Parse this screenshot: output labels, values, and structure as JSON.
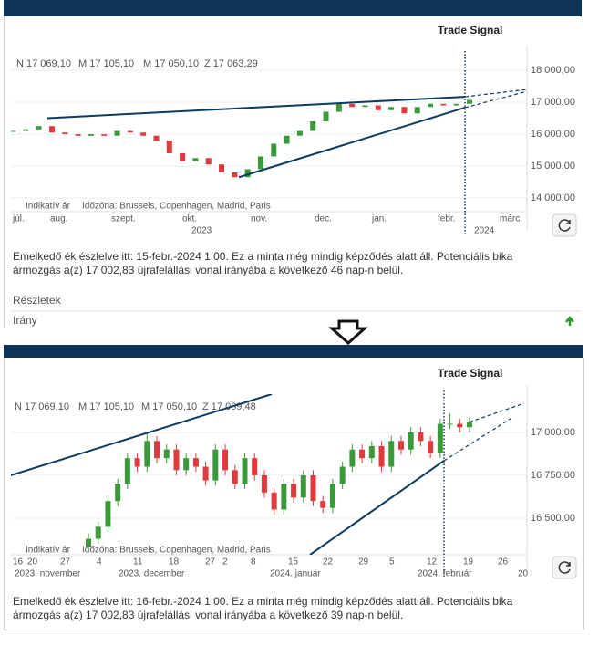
{
  "panels": [
    {
      "title": "Trade Signal",
      "ohlc": [
        "N 17 069,10",
        "M 17 105,10",
        "M 17 050,10",
        "Z 17 063,29"
      ],
      "chart": {
        "type": "candlestick",
        "ylim": [
          13571,
          18486
        ],
        "yticks": [
          {
            "value": 18000,
            "label": "18 000,00"
          },
          {
            "value": 17000,
            "label": "17 000,00"
          },
          {
            "value": 16000,
            "label": "16 000,00"
          },
          {
            "value": 15000,
            "label": "15 000,00"
          },
          {
            "value": 14000,
            "label": "14 000,00"
          }
        ],
        "grid": true,
        "up_color": "#3a9a3a",
        "down_color": "#e0393e",
        "line_color": "#0d3b5e",
        "candles": {
          "open": [
            16080,
            16100,
            16150,
            16250,
            16050,
            16000,
            15950,
            16000,
            15950,
            16100,
            16050,
            15950,
            15800,
            15400,
            15150,
            15250,
            15050,
            14800,
            14650,
            14900,
            15300,
            15700,
            15950,
            16100,
            16400,
            16700,
            16950,
            16850,
            16900,
            16750,
            16850,
            16650,
            16850,
            16950,
            16900,
            16950
          ],
          "close": [
            16100,
            16150,
            16250,
            16050,
            16000,
            15950,
            16000,
            15950,
            16100,
            16050,
            15950,
            15800,
            15400,
            15150,
            15250,
            15050,
            14800,
            14650,
            14900,
            15300,
            15700,
            15950,
            16100,
            16400,
            16700,
            16950,
            16850,
            16900,
            16750,
            16850,
            16650,
            16850,
            16950,
            16900,
            16950,
            17070
          ]
        },
        "trend_lines": [
          {
            "values": [
              16500,
              17170
            ],
            "dashed": false
          },
          {
            "values": [
              17170,
              17400
            ],
            "dashed": true
          },
          {
            "values": [
              14650,
              16830
            ],
            "dashed": false
          },
          {
            "values": [
              16830,
              17340
            ],
            "dashed": true
          }
        ],
        "x_labels": [
          "júl.",
          "aug.",
          "szept.",
          "okt.",
          "nov.",
          "dec.",
          "jan.",
          "febr.",
          "márc."
        ],
        "x_labels_2": [
          "2023",
          "2024"
        ],
        "notes": [
          "Indikatív ár",
          "Időzóna: Brussels, Copenhagen, Madrid, Paris"
        ]
      },
      "signal_text": [
        "Emelkedő ék észlelve itt: 15-febr.-2024 1:00. Ez a minta még mindig képződés alatt áll. Potenciális bika",
        "ármozgás a(z) 17 002,83 újrafelállási vonal irányába a következő 46 nap-n belül."
      ],
      "details": {
        "heading": "Részletek",
        "row": "Irány"
      }
    },
    {
      "title": "Trade Signal",
      "ohlc": [
        "N 17 069,10",
        "M 17 105,10",
        "M 17 050,10",
        "Z 17 069,48"
      ],
      "chart": {
        "type": "candlestick",
        "ylim": [
          16287,
          17223
        ],
        "yticks": [
          {
            "value": 17000,
            "label": "17 000,00"
          },
          {
            "value": 16750,
            "label": "16 750,00"
          },
          {
            "value": 16500,
            "label": "16 500,00"
          }
        ],
        "grid": true,
        "up_color": "#3a9a3a",
        "down_color": "#e0393e",
        "line_color": "#0d3b5e",
        "candles": {
          "open": [
            16330,
            16380,
            16450,
            16600,
            16700,
            16850,
            16800,
            16950,
            16850,
            16900,
            16780,
            16850,
            16800,
            16720,
            16900,
            16780,
            16700,
            16850,
            16750,
            16650,
            16550,
            16700,
            16620,
            16750,
            16600,
            16560,
            16700,
            16800,
            16900,
            16850,
            16920,
            16800,
            16950,
            16900,
            17000,
            16950,
            16880,
            17050,
            17050,
            17030
          ],
          "high": [
            16410,
            16480,
            16630,
            16730,
            16880,
            16880,
            17000,
            16980,
            16930,
            16930,
            16880,
            16880,
            16830,
            16930,
            16930,
            16810,
            16880,
            16880,
            16780,
            16680,
            16730,
            16730,
            16780,
            16780,
            16630,
            16730,
            16830,
            16930,
            16930,
            16950,
            16950,
            16980,
            16980,
            17030,
            17030,
            16980,
            17080,
            17110,
            17080,
            17090
          ],
          "low": [
            16300,
            16350,
            16420,
            16570,
            16670,
            16770,
            16770,
            16820,
            16820,
            16750,
            16750,
            16770,
            16690,
            16690,
            16750,
            16670,
            16670,
            16720,
            16620,
            16520,
            16520,
            16590,
            16590,
            16570,
            16530,
            16530,
            16670,
            16770,
            16820,
            16820,
            16770,
            16770,
            16870,
            16870,
            16920,
            16850,
            16850,
            17020,
            17000,
            17000
          ],
          "close": [
            16380,
            16450,
            16600,
            16700,
            16850,
            16800,
            16950,
            16850,
            16900,
            16780,
            16850,
            16800,
            16720,
            16900,
            16780,
            16700,
            16850,
            16750,
            16650,
            16550,
            16700,
            16620,
            16750,
            16600,
            16560,
            16700,
            16800,
            16900,
            16850,
            16920,
            16800,
            16950,
            16900,
            17000,
            16950,
            16880,
            17050,
            17050,
            17030,
            17060
          ]
        },
        "trend_lines": [
          {
            "values": [
              16750,
              17223
            ],
            "dashed": false
          },
          {
            "values": [
              16287,
              16835
            ],
            "dashed": false
          },
          {
            "values": [
              16835,
              17080
            ],
            "dashed": true
          },
          {
            "values": [
              17060,
              17170
            ],
            "dashed": true
          }
        ],
        "x_labels": [
          "16",
          "20",
          "27",
          "4",
          "11",
          "18",
          "27",
          "2",
          "8",
          "15",
          "22",
          "29",
          "5",
          "12",
          "19",
          "26"
        ],
        "x_labels_2": [
          "2023. november",
          "2023. december",
          "2024. január",
          "2024. február",
          "20"
        ],
        "notes": [
          "Indikatív ár",
          "Időzóna: Brussels, Copenhagen, Madrid, Paris"
        ]
      },
      "signal_text": [
        "Emelkedő ék észlelve itt: 16-febr.-2024 1:00. Ez a minta még mindig képződés alatt áll. Potenciális bika",
        "ármozgás a(z) 17 002,83 újrafelállási vonal irányába a következő 39 nap-n belül."
      ]
    }
  ]
}
